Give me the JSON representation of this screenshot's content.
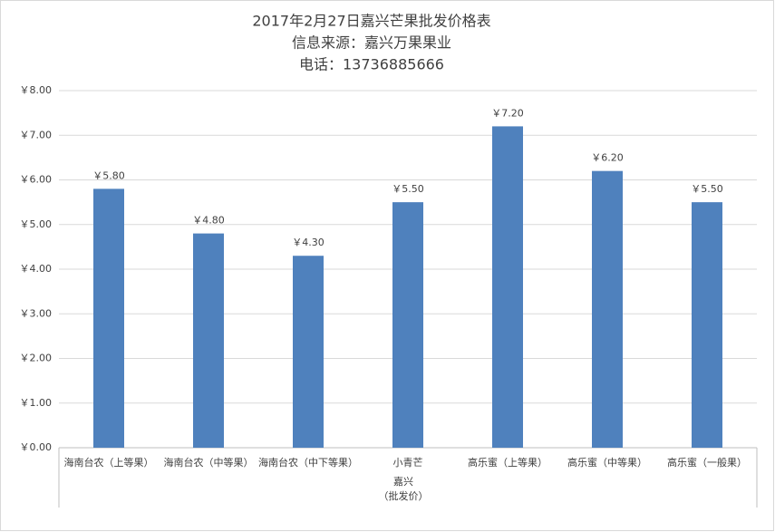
{
  "chart_data": {
    "type": "bar",
    "title_lines": [
      "2017年2月27日嘉兴芒果批发价格表",
      "信息来源：嘉兴万果果业",
      "电话：13736885666"
    ],
    "categories": [
      "海南台农（上等果）",
      "海南台农（中等果）",
      "海南台农（中下等果）",
      "小青芒",
      "高乐蜜（上等果）",
      "高乐蜜（中等果）",
      "高乐蜜（一般果）"
    ],
    "category_group": [
      "嘉兴",
      "（批发价）"
    ],
    "values": [
      5.8,
      4.8,
      4.3,
      5.5,
      7.2,
      6.2,
      5.5
    ],
    "value_labels": [
      "￥5.80",
      "￥4.80",
      "￥4.30",
      "￥5.50",
      "￥7.20",
      "￥6.20",
      "￥5.50"
    ],
    "color": "#4f81bd",
    "ylim": [
      0,
      8
    ],
    "yticks": [
      {
        "value": 0,
        "label": "￥0.00"
      },
      {
        "value": 1,
        "label": "￥1.00"
      },
      {
        "value": 2,
        "label": "￥2.00"
      },
      {
        "value": 3,
        "label": "￥3.00"
      },
      {
        "value": 4,
        "label": "￥4.00"
      },
      {
        "value": 5,
        "label": "￥5.00"
      },
      {
        "value": 6,
        "label": "￥6.00"
      },
      {
        "value": 7,
        "label": "￥7.00"
      },
      {
        "value": 8,
        "label": "￥8.00"
      }
    ],
    "grid": true
  }
}
